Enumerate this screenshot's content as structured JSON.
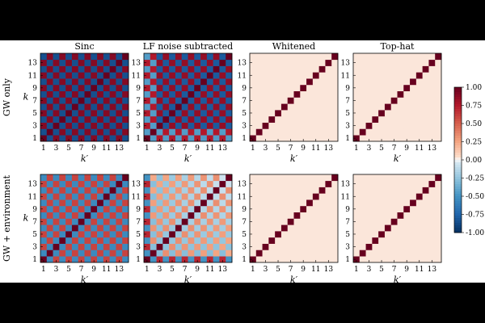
{
  "chart_data": {
    "type": "heatmap",
    "matrix_size": 14,
    "colormap": "RdBu_r",
    "clim": [
      -1.0,
      1.0
    ],
    "colorbar_ticks": [
      "1.00",
      "0.75",
      "0.50",
      "0.25",
      "0.00",
      "-0.25",
      "-0.50",
      "-0.75",
      "-1.00"
    ],
    "colorbar_values": [
      1.0,
      0.75,
      0.5,
      0.25,
      0.0,
      -0.25,
      -0.5,
      -0.75,
      -1.0
    ],
    "column_titles": [
      "Sinc",
      "LF noise subtracted",
      "Whitened",
      "Top-hat"
    ],
    "row_titles": [
      "GW only",
      "GW + environment"
    ],
    "xlabel": "k′",
    "ylabel": "k",
    "x_tick_labels": [
      "1",
      "3",
      "5",
      "7",
      "9",
      "11",
      "13"
    ],
    "y_tick_labels": [
      "1",
      "3",
      "5",
      "7",
      "9",
      "11",
      "13"
    ],
    "panels": [
      {
        "row": "GW only",
        "column": "Sinc",
        "pattern": "checkerboard",
        "diag": 1.0,
        "same_parity": 0.9,
        "opposite_parity": -0.85
      },
      {
        "row": "GW only",
        "column": "LF noise subtracted",
        "pattern": "checkerboard with strong first rows/columns",
        "diag": 1.0,
        "same_parity": 0.85,
        "opposite_parity": -0.8
      },
      {
        "row": "GW only",
        "column": "Whitened",
        "pattern": "diagonal",
        "diag": 1.0,
        "off_diagonal": 0.03
      },
      {
        "row": "GW only",
        "column": "Top-hat",
        "pattern": "diagonal",
        "diag": 1.0,
        "off_diagonal": 0.03
      },
      {
        "row": "GW + environment",
        "column": "Sinc",
        "pattern": "checkerboard",
        "diag": 1.0,
        "same_parity": 0.6,
        "opposite_parity": -0.55
      },
      {
        "row": "GW + environment",
        "column": "LF noise subtracted",
        "pattern": "checkerboard, reduced amplitude",
        "diag": 1.0,
        "same_parity": 0.35,
        "opposite_parity": -0.3
      },
      {
        "row": "GW + environment",
        "column": "Whitened",
        "pattern": "diagonal",
        "diag": 1.0,
        "off_diagonal": 0.03
      },
      {
        "row": "GW + environment",
        "column": "Top-hat",
        "pattern": "diagonal",
        "diag": 1.0,
        "off_diagonal": 0.03
      }
    ]
  }
}
